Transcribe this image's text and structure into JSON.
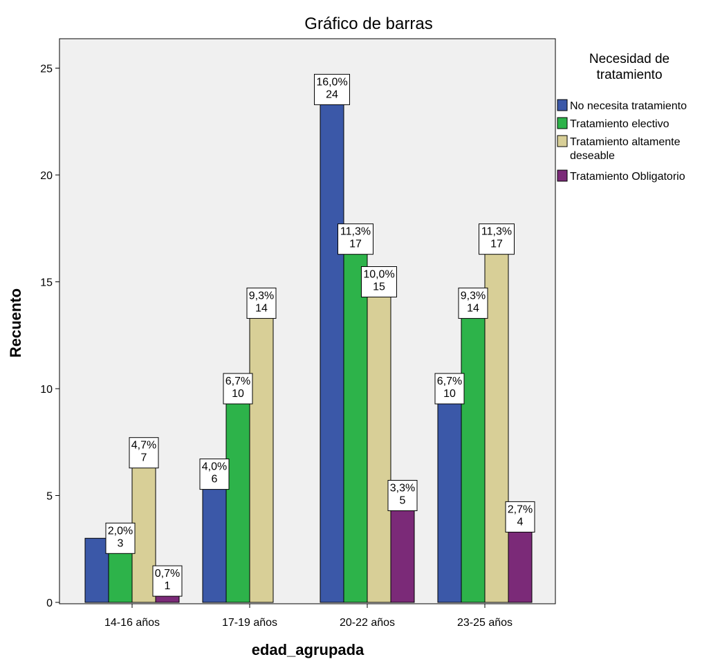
{
  "chart_data": {
    "type": "bar",
    "title": "Gráfico de barras",
    "xlabel": "edad_agrupada",
    "ylabel": "Recuento",
    "ylim": [
      0,
      26
    ],
    "yticks": [
      0,
      5,
      10,
      15,
      20,
      25
    ],
    "grid": false,
    "legend_position": "right",
    "legend_title": [
      "Necesidad de",
      "tratamiento"
    ],
    "categories": [
      "14-16 años",
      "17-19 años",
      "20-22 años",
      "23-25 años"
    ],
    "series": [
      {
        "name": "No necesita tratamiento",
        "color": "#3b58a8",
        "values": [
          3,
          6,
          24,
          10
        ],
        "labels": [
          null,
          [
            "4,0%",
            "6"
          ],
          [
            "16,0%",
            "24"
          ],
          [
            "6,7%",
            "10"
          ]
        ]
      },
      {
        "name": "Tratamiento electivo",
        "color": "#2db34a",
        "values": [
          3,
          10,
          17,
          14
        ],
        "labels": [
          [
            "2,0%",
            "3"
          ],
          [
            "6,7%",
            "10"
          ],
          [
            "11,3%",
            "17"
          ],
          [
            "9,3%",
            "14"
          ]
        ]
      },
      {
        "name": [
          "Tratamiento altamente",
          "deseable"
        ],
        "color": "#d8cf97",
        "values": [
          7,
          14,
          15,
          17
        ],
        "labels": [
          [
            "4,7%",
            "7"
          ],
          [
            "9,3%",
            "14"
          ],
          [
            "10,0%",
            "15"
          ],
          [
            "11,3%",
            "17"
          ]
        ]
      },
      {
        "name": "Tratamiento Obligatorio",
        "color": "#7b2a78",
        "values": [
          1,
          null,
          5,
          4
        ],
        "labels": [
          [
            "0,7%",
            "1"
          ],
          null,
          [
            "3,3%",
            "5"
          ],
          [
            "2,7%",
            "4"
          ]
        ]
      }
    ]
  }
}
